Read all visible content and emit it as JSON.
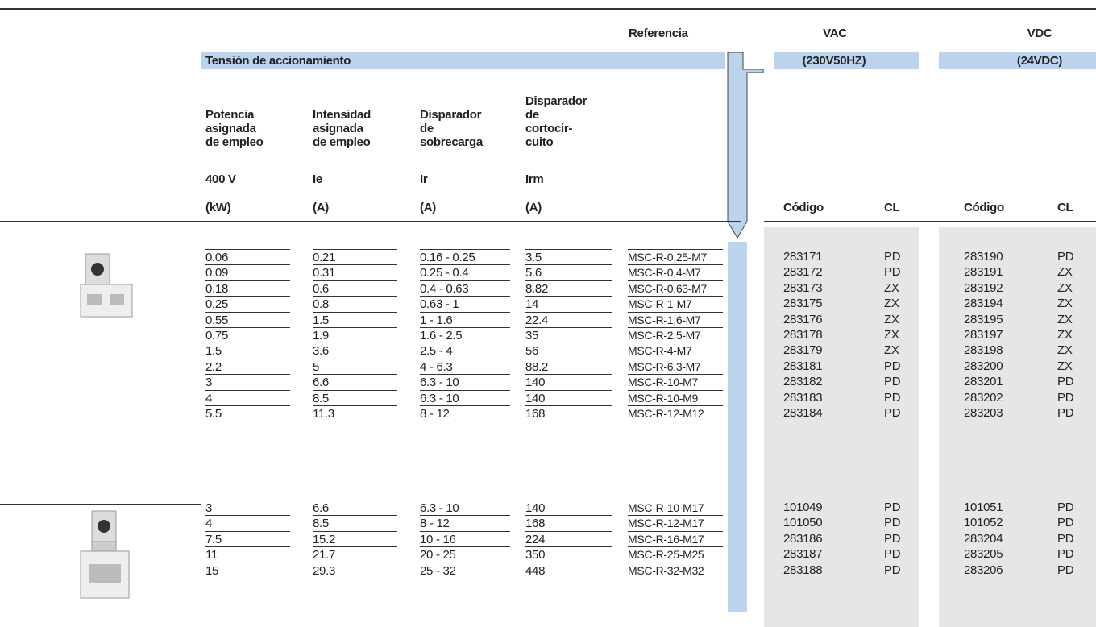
{
  "header": {
    "referencia": "Referencia",
    "vac": "VAC",
    "vdc": "VDC",
    "tension": "Tensión de accionamiento",
    "vac_spec": "(230V50HZ)",
    "vdc_spec": "(24VDC)"
  },
  "columns": [
    {
      "title": "Potencia\nasignada\nde empleo",
      "symbol": "400 V",
      "unit": "(kW)"
    },
    {
      "title": "Intensidad\nasignada\nde empleo",
      "symbol": "Ie",
      "unit": "(A)"
    },
    {
      "title": "Disparador\nde\nsobrecarga",
      "symbol": "Ir",
      "unit": "(A)"
    },
    {
      "title": "Disparador\nde\ncortocir-\ncuito",
      "symbol": "Irm",
      "unit": "(A)"
    }
  ],
  "code_columns": [
    "Código",
    "CL",
    "Código",
    "CL"
  ],
  "groups": [
    {
      "rows": [
        [
          "0.06",
          "0.21",
          "0.16 - 0.25",
          "3.5",
          "MSC-R-0,25-M7",
          "283171",
          "PD",
          "283190",
          "PD"
        ],
        [
          "0.09",
          "0.31",
          "0.25 - 0.4",
          "5.6",
          "MSC-R-0,4-M7",
          "283172",
          "PD",
          "283191",
          "ZX"
        ],
        [
          "0.18",
          "0.6",
          "0.4 - 0.63",
          "8.82",
          "MSC-R-0,63-M7",
          "283173",
          "ZX",
          "283192",
          "ZX"
        ],
        [
          "0.25",
          "0.8",
          "0.63 - 1",
          "14",
          "MSC-R-1-M7",
          "283175",
          "ZX",
          "283194",
          "ZX"
        ],
        [
          "0.55",
          "1.5",
          "1 - 1.6",
          "22.4",
          "MSC-R-1,6-M7",
          "283176",
          "ZX",
          "283195",
          "ZX"
        ],
        [
          "0.75",
          "1.9",
          "1.6 - 2.5",
          "35",
          "MSC-R-2,5-M7",
          "283178",
          "ZX",
          "283197",
          "ZX"
        ],
        [
          "1.5",
          "3.6",
          "2.5 - 4",
          "56",
          "MSC-R-4-M7",
          "283179",
          "ZX",
          "283198",
          "ZX"
        ],
        [
          "2.2",
          "5",
          "4 - 6.3",
          "88.2",
          "MSC-R-6,3-M7",
          "283181",
          "PD",
          "283200",
          "ZX"
        ],
        [
          "3",
          "6.6",
          "6.3 - 10",
          "140",
          "MSC-R-10-M7",
          "283182",
          "PD",
          "283201",
          "PD"
        ],
        [
          "4",
          "8.5",
          "6.3 - 10",
          "140",
          "MSC-R-10-M9",
          "283183",
          "PD",
          "283202",
          "PD"
        ],
        [
          "5.5",
          "11.3",
          "8 - 12",
          "168",
          "MSC-R-12-M12",
          "283184",
          "PD",
          "283203",
          "PD"
        ]
      ]
    },
    {
      "rows": [
        [
          "3",
          "6.6",
          "6.3 - 10",
          "140",
          "MSC-R-10-M17",
          "101049",
          "PD",
          "101051",
          "PD"
        ],
        [
          "4",
          "8.5",
          "8 - 12",
          "168",
          "MSC-R-12-M17",
          "101050",
          "PD",
          "101052",
          "PD"
        ],
        [
          "7.5",
          "15.2",
          "10 - 16",
          "224",
          "MSC-R-16-M17",
          "283186",
          "PD",
          "283204",
          "PD"
        ],
        [
          "11",
          "21.7",
          "20 - 25",
          "350",
          "MSC-R-25-M25",
          "283187",
          "PD",
          "283205",
          "PD"
        ],
        [
          "15",
          "29.3",
          "25 - 32",
          "448",
          "MSC-R-32-M32",
          "283188",
          "PD",
          "283206",
          "PD"
        ]
      ]
    }
  ]
}
